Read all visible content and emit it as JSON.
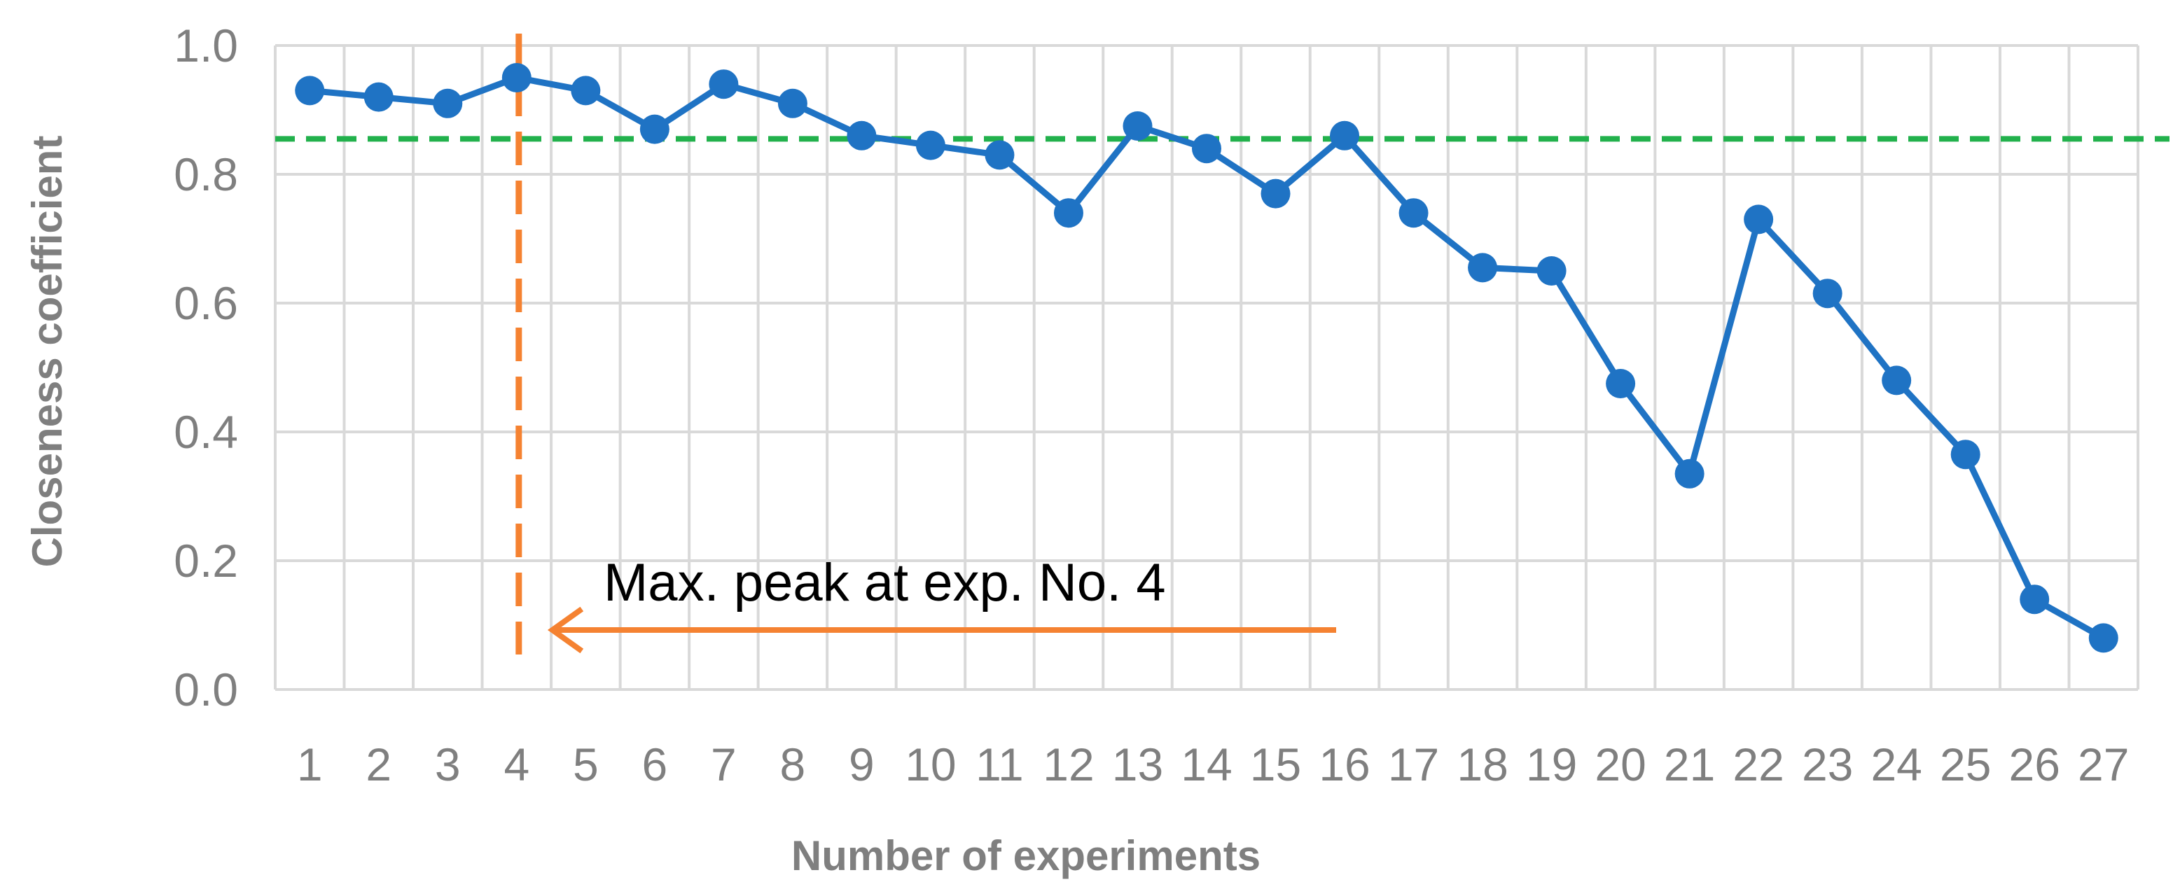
{
  "chart_data": {
    "type": "line",
    "title": "",
    "xlabel": "Number of experiments",
    "ylabel": "Closeness coefficient",
    "categories": [
      "1",
      "2",
      "3",
      "4",
      "5",
      "6",
      "7",
      "8",
      "9",
      "10",
      "11",
      "12",
      "13",
      "14",
      "15",
      "16",
      "17",
      "18",
      "19",
      "20",
      "21",
      "22",
      "23",
      "24",
      "25",
      "26",
      "27"
    ],
    "yticks": [
      "0.0",
      "0.2",
      "0.4",
      "0.6",
      "0.8",
      "1.0"
    ],
    "ylim": [
      0,
      1.0
    ],
    "grid": true,
    "series": [
      {
        "values": [
          0.93,
          0.92,
          0.91,
          0.95,
          0.93,
          0.87,
          0.94,
          0.91,
          0.86,
          0.845,
          0.83,
          0.74,
          0.875,
          0.84,
          0.77,
          0.86,
          0.74,
          0.655,
          0.65,
          0.475,
          0.335,
          0.73,
          0.615,
          0.48,
          0.365,
          0.14,
          0.08
        ]
      }
    ],
    "reference_line": {
      "y": 0.855,
      "style": "dashed"
    },
    "marker_line": {
      "x": "4",
      "style": "dashed"
    },
    "annotation": {
      "text": "Max. peak at exp. No. 4",
      "points_to": "4"
    },
    "colors": {
      "series": "#1f73c4",
      "reference": "#22b14c",
      "marker": "#f58231",
      "grid": "#d9d9d9",
      "axis_text": "#7f7f7f"
    }
  }
}
